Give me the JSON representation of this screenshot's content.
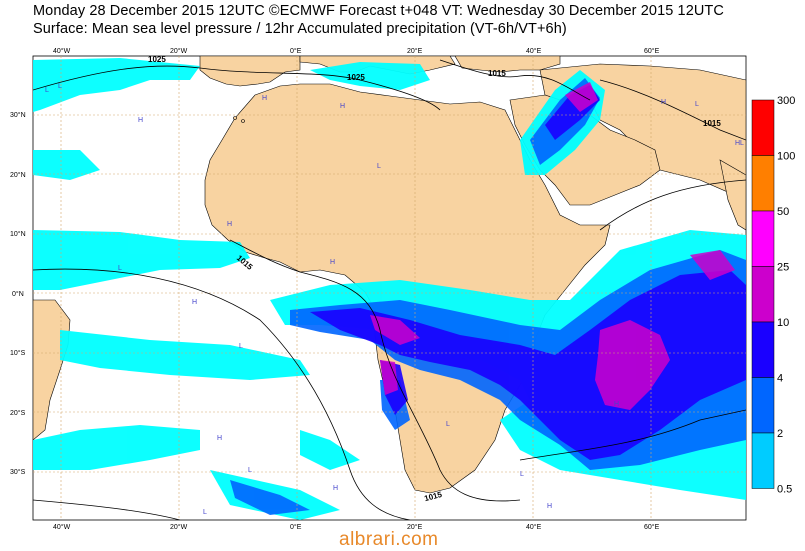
{
  "header": {
    "line1": "Monday 28 December 2015 12UTC ©ECMWF Forecast t+048 VT: Wednesday 30 December 2015 12UTC",
    "line2": "Surface: Mean sea level pressure / 12hr Accumulated precipitation (VT-6h/VT+6h)"
  },
  "map": {
    "lon_top_labels": [
      "40°W",
      "20°W",
      "0°E",
      "20°E",
      "40°E",
      "60°E"
    ],
    "lon_bottom_labels": [
      "40°W",
      "20°W",
      "0°E",
      "20°E",
      "40°E",
      "60°E"
    ],
    "lat_labels": [
      "30°N",
      "20°N",
      "10°N",
      "0°N",
      "10°S",
      "20°S",
      "30°S"
    ],
    "isobar_labels": [
      "1025",
      "1025",
      "1015",
      "1015",
      "1015",
      "1015"
    ],
    "pressure_centers": [
      "L",
      "H",
      "L",
      "H",
      "H",
      "L",
      "H",
      "L",
      "H",
      "L",
      "H",
      "L",
      "H",
      "L",
      "H",
      "L",
      "H",
      "L",
      "HL",
      "H",
      "L",
      "H"
    ]
  },
  "colorbar": {
    "levels": [
      "300",
      "100",
      "50",
      "25",
      "10",
      "4",
      "2",
      "0.5"
    ],
    "colors": [
      "#ff0000",
      "#ff7f00",
      "#ff00ff",
      "#cc00cc",
      "#1a00ff",
      "#0066ff",
      "#00ccff",
      "#00ffff"
    ]
  },
  "colors": {
    "land": "#f8d3a1",
    "sea": "#ffffff",
    "grid": "#d2a76a",
    "precip_light": "#00ffff",
    "precip_med": "#0066ff",
    "precip_heavy": "#1a00ff",
    "precip_very_heavy": "#cc00cc"
  },
  "watermark": "albrari.com"
}
